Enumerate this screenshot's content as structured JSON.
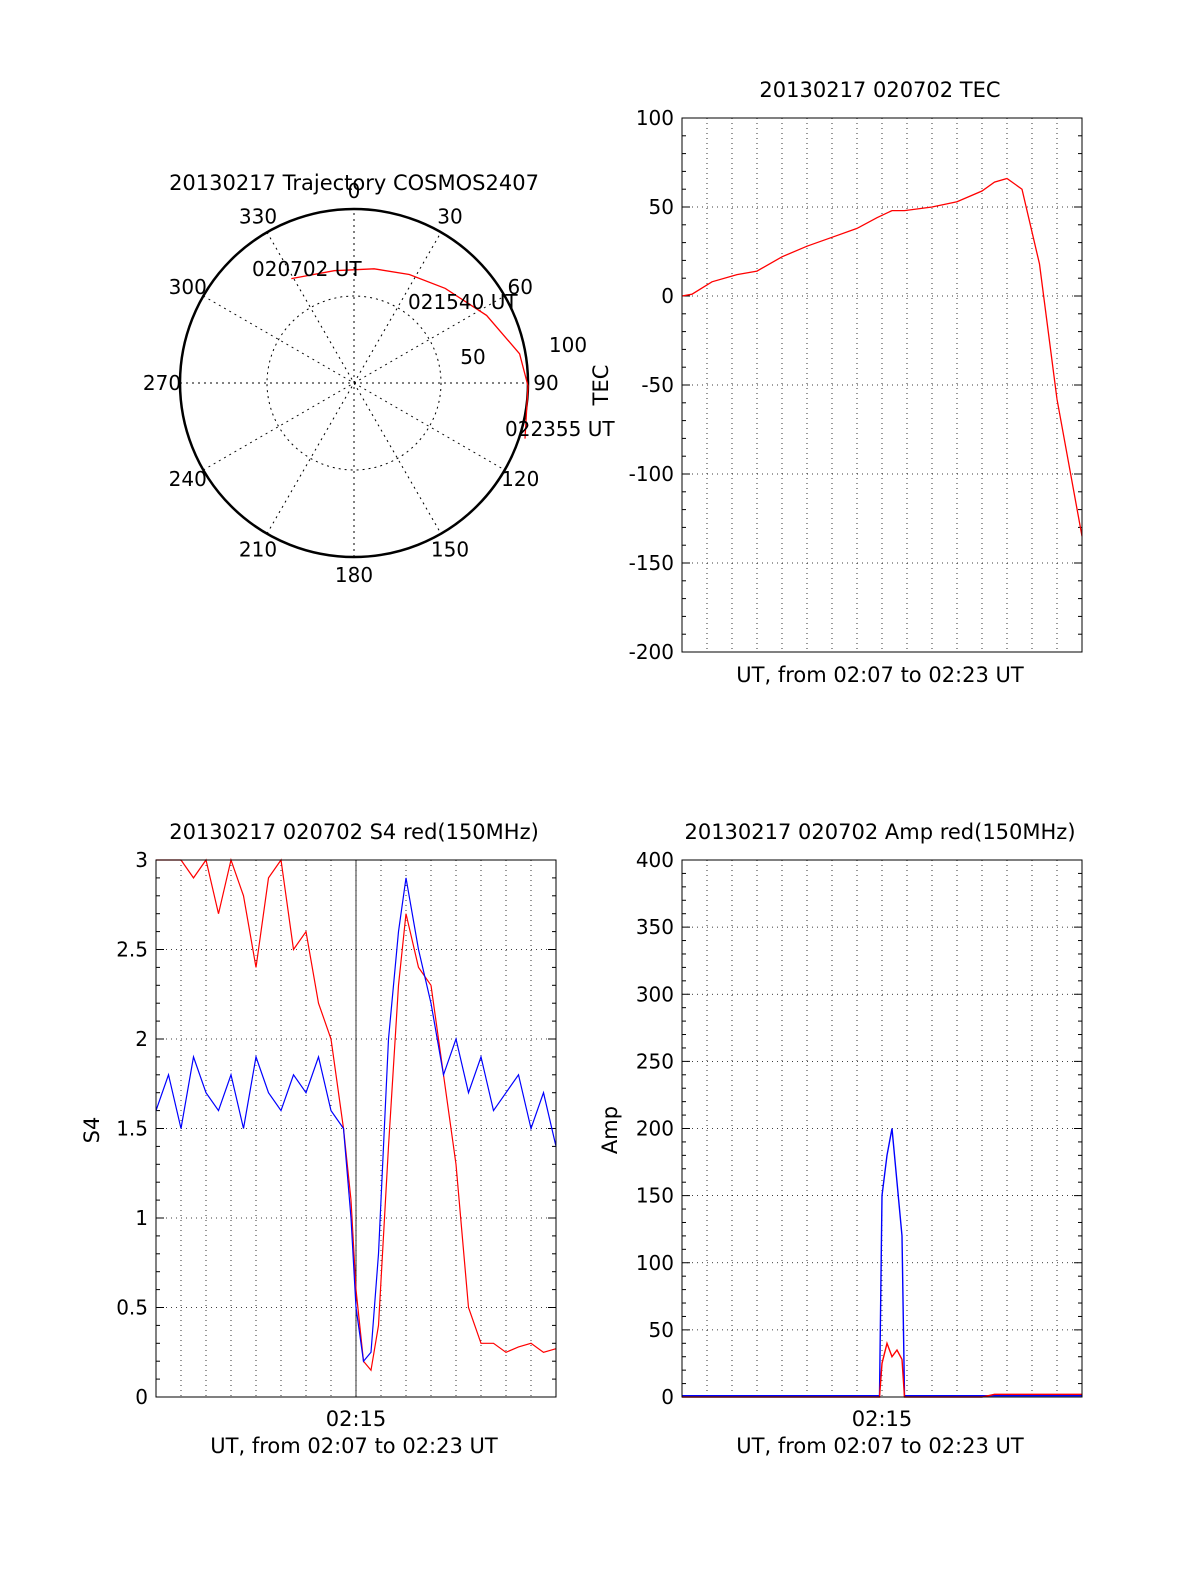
{
  "chart_data": [
    {
      "type": "polar",
      "title": "20130217 Trajectory COSMOS2407",
      "angle_labels": [
        "0",
        "30",
        "60",
        "90",
        "120",
        "150",
        "180",
        "210",
        "240",
        "270",
        "300",
        "330"
      ],
      "radial_labels": [
        "50",
        "100"
      ],
      "trajectory": {
        "color": "#ff0000",
        "points": [
          {
            "azimuth": -31,
            "zenith": 63
          },
          {
            "azimuth": -10,
            "zenith": 59
          },
          {
            "azimuth": 10,
            "zenith": 60
          },
          {
            "azimuth": 27,
            "zenith": 63
          },
          {
            "azimuth": 44,
            "zenith": 68
          },
          {
            "azimuth": 63,
            "zenith": 77
          },
          {
            "azimuth": 80,
            "zenith": 87
          },
          {
            "azimuth": 91,
            "zenith": 90
          },
          {
            "azimuth": 108,
            "zenith": 93
          }
        ]
      },
      "annotations": [
        "020702 UT",
        "021540 UT",
        "022355 UT"
      ]
    },
    {
      "type": "line",
      "title": "20130217 020702 TEC",
      "xlabel": "UT, from 02:07 to 02:23 UT",
      "ylabel": "TEC",
      "ylim": [
        -200,
        100
      ],
      "yticks": [
        "100",
        "50",
        "0",
        "-50",
        "-100",
        "-150",
        "-200"
      ],
      "x_unit": "minutes after 02:07",
      "series": [
        {
          "color": "#ff0000",
          "x": [
            0,
            0.4,
            1.2,
            2.2,
            3.0,
            4.0,
            5.0,
            6.0,
            7.0,
            7.8,
            8.4,
            8.9,
            10.0,
            11.0,
            12.0,
            12.5,
            13.0,
            13.6,
            14.3,
            15.0,
            16.0
          ],
          "y": [
            0,
            1,
            8,
            12,
            14,
            22,
            28,
            33,
            38,
            44,
            48,
            48,
            50,
            53,
            59,
            64,
            66,
            60,
            18,
            -58,
            -135
          ]
        }
      ]
    },
    {
      "type": "line",
      "title": "20130217 020702 S4 red(150MHz)",
      "xlabel": "UT, from 02:07 to 02:23 UT",
      "ylabel": "S4",
      "ylim": [
        0,
        3
      ],
      "yticks": [
        "3",
        "2.5",
        "2",
        "1.5",
        "1",
        "0.5",
        "0"
      ],
      "xtick": "02:15",
      "series": [
        {
          "color": "#ff0000",
          "x": [
            0,
            0.5,
            1,
            1.5,
            2,
            2.5,
            3,
            3.5,
            4,
            4.5,
            5,
            5.5,
            6,
            6.5,
            7,
            7.5,
            7.8,
            8.0,
            8.3,
            8.6,
            8.9,
            9.3,
            9.7,
            10,
            10.5,
            11,
            11.5,
            12,
            12.5,
            13,
            13.5,
            14,
            14.5,
            15,
            15.5,
            16
          ],
          "y": [
            3,
            3,
            3,
            2.9,
            3,
            2.7,
            3,
            2.8,
            2.4,
            2.9,
            3,
            2.5,
            2.6,
            2.2,
            2.0,
            1.5,
            1.1,
            0.6,
            0.2,
            0.15,
            0.4,
            1.4,
            2.3,
            2.7,
            2.4,
            2.3,
            1.8,
            1.3,
            0.5,
            0.3,
            0.3,
            0.25,
            0.28,
            0.3,
            0.25,
            0.27
          ]
        },
        {
          "color": "#0000ff",
          "x": [
            0,
            0.5,
            1,
            1.5,
            2,
            2.5,
            3,
            3.5,
            4,
            4.5,
            5,
            5.5,
            6,
            6.5,
            7,
            7.5,
            7.8,
            8.0,
            8.3,
            8.6,
            8.9,
            9.3,
            9.7,
            10,
            10.5,
            11,
            11.5,
            12,
            12.5,
            13,
            13.5,
            14,
            14.5,
            15,
            15.5,
            16
          ],
          "y": [
            1.6,
            1.8,
            1.5,
            1.9,
            1.7,
            1.6,
            1.8,
            1.5,
            1.9,
            1.7,
            1.6,
            1.8,
            1.7,
            1.9,
            1.6,
            1.5,
            1.0,
            0.5,
            0.2,
            0.25,
            0.8,
            2.0,
            2.6,
            2.9,
            2.5,
            2.2,
            1.8,
            2.0,
            1.7,
            1.9,
            1.6,
            1.7,
            1.8,
            1.5,
            1.7,
            1.4
          ]
        }
      ]
    },
    {
      "type": "line",
      "title": "20130217 020702 Amp red(150MHz)",
      "xlabel": "UT, from 02:07 to 02:23 UT",
      "ylabel": "Amp",
      "ylim": [
        0,
        400
      ],
      "yticks": [
        "400",
        "350",
        "300",
        "250",
        "200",
        "150",
        "100",
        "50",
        "0"
      ],
      "xtick": "02:15",
      "series": [
        {
          "color": "#ff0000",
          "x": [
            0,
            2,
            4,
            6,
            7.9,
            8.0,
            8.2,
            8.4,
            8.6,
            8.8,
            8.9,
            9.0,
            10,
            12,
            12.5,
            14,
            16
          ],
          "y": [
            0,
            0,
            0,
            0,
            0,
            25,
            40,
            30,
            35,
            28,
            0,
            0,
            0,
            0,
            2,
            2,
            2
          ]
        },
        {
          "color": "#0000ff",
          "x": [
            0,
            2,
            4,
            6,
            7.9,
            8.0,
            8.2,
            8.4,
            8.6,
            8.8,
            8.9,
            9.0,
            10,
            12,
            14,
            16
          ],
          "y": [
            1,
            1,
            1,
            1,
            1,
            150,
            180,
            200,
            160,
            120,
            1,
            1,
            1,
            1,
            1,
            1
          ]
        }
      ]
    }
  ]
}
